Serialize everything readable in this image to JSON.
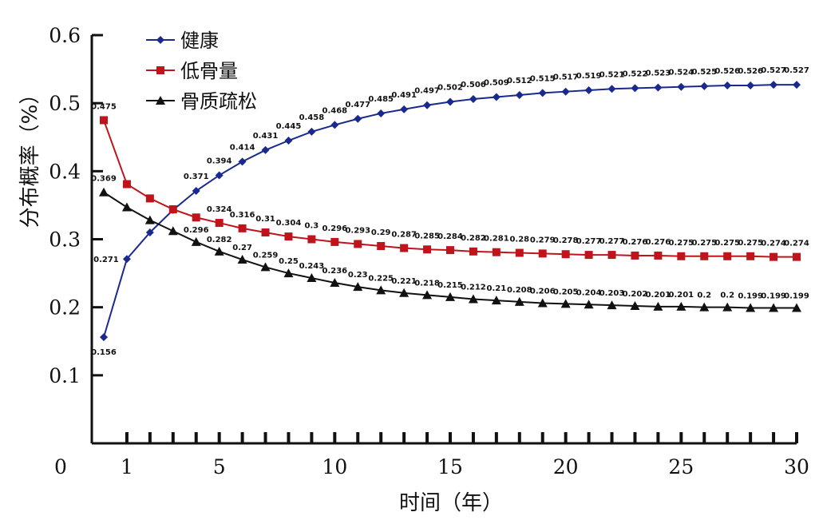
{
  "chart_data": {
    "type": "line",
    "title": "",
    "xlabel": "时间（年）",
    "ylabel": "分布概率（%）",
    "xlim": [
      0,
      30
    ],
    "ylim": [
      0,
      0.6
    ],
    "x_ticks": [
      "0",
      "1",
      "5",
      "10",
      "15",
      "20",
      "25",
      "30"
    ],
    "y_ticks": [
      "0.1",
      "0.2",
      "0.3",
      "0.4",
      "0.5",
      "0.6"
    ],
    "legend_position": "top-left",
    "grid": false,
    "x": [
      0,
      1,
      2,
      3,
      4,
      5,
      6,
      7,
      8,
      9,
      10,
      11,
      12,
      13,
      14,
      15,
      16,
      17,
      18,
      19,
      20,
      21,
      22,
      23,
      24,
      25,
      26,
      27,
      28,
      29,
      30
    ],
    "series": [
      {
        "name": "健康",
        "color": "#1a2a8c",
        "marker": "diamond",
        "values": [
          0.156,
          0.271,
          0.31,
          0.343,
          0.371,
          0.394,
          0.414,
          0.431,
          0.445,
          0.458,
          0.468,
          0.477,
          0.485,
          0.491,
          0.497,
          0.502,
          0.506,
          0.509,
          0.512,
          0.515,
          0.517,
          0.519,
          0.521,
          0.522,
          0.523,
          0.524,
          0.525,
          0.526,
          0.526,
          0.527,
          0.527
        ],
        "labels": [
          "0.156",
          "0.271",
          "",
          "",
          "0.371",
          "0.394",
          "0.414",
          "0.431",
          "0.445",
          "0.458",
          "0.468",
          "0.477",
          "0.485",
          "0.491",
          "0.497",
          "0.502",
          "0.506",
          "0.509",
          "0.512",
          "0.515",
          "0.517",
          "0.519",
          "0.521",
          "0.522",
          "0.523",
          "0.524",
          "0.525",
          "0.526",
          "0.526",
          "0.527",
          "0.527"
        ]
      },
      {
        "name": "低骨量",
        "color": "#c0141c",
        "marker": "square",
        "values": [
          0.475,
          0.381,
          0.36,
          0.344,
          0.332,
          0.324,
          0.316,
          0.31,
          0.304,
          0.3,
          0.296,
          0.293,
          0.29,
          0.287,
          0.285,
          0.284,
          0.282,
          0.281,
          0.28,
          0.279,
          0.278,
          0.277,
          0.277,
          0.276,
          0.276,
          0.275,
          0.275,
          0.275,
          0.275,
          0.274,
          0.274
        ],
        "labels": [
          "0.475",
          "",
          "",
          "",
          "",
          "0.324",
          "0.316",
          "0.31",
          "0.304",
          "0.3",
          "0.296",
          "0.293",
          "0.29",
          "0.287",
          "0.285",
          "0.284",
          "0.282",
          "0.281",
          "0.28",
          "0.279",
          "0.278",
          "0.277",
          "0.277",
          "0.276",
          "0.276",
          "0.275",
          "0.275",
          "0.275",
          "0.275",
          "0.274",
          "0.274"
        ]
      },
      {
        "name": "骨质疏松",
        "color": "#111111",
        "marker": "triangle",
        "values": [
          0.369,
          0.347,
          0.328,
          0.312,
          0.296,
          0.282,
          0.27,
          0.259,
          0.25,
          0.243,
          0.236,
          0.23,
          0.225,
          0.221,
          0.218,
          0.215,
          0.212,
          0.21,
          0.208,
          0.206,
          0.205,
          0.204,
          0.203,
          0.202,
          0.201,
          0.201,
          0.2,
          0.2,
          0.199,
          0.199,
          0.199
        ],
        "labels": [
          "0.369",
          "",
          "",
          "",
          "0.296",
          "0.282",
          "0.27",
          "0.259",
          "0.25",
          "0.243",
          "0.236",
          "0.23",
          "0.225",
          "0.221",
          "0.218",
          "0.215",
          "0.212",
          "0.21",
          "0.208",
          "0.206",
          "0.205",
          "0.204",
          "0.203",
          "0.202",
          "0.201",
          "0.201",
          "0.2",
          "0.2",
          "0.199",
          "0.199",
          "0.199"
        ]
      }
    ]
  }
}
